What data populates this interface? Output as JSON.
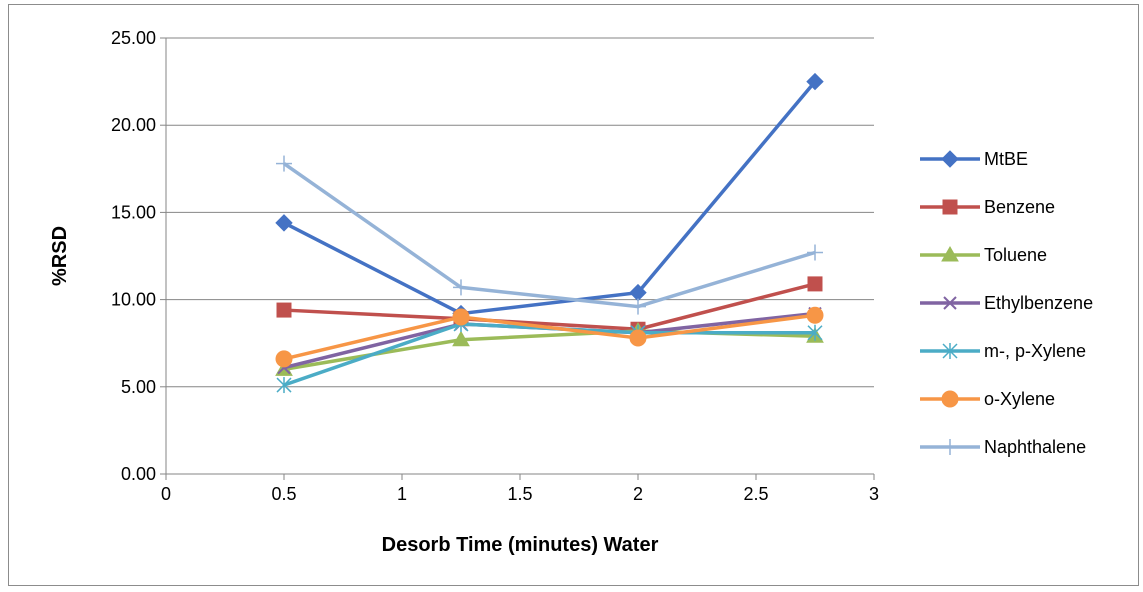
{
  "chart_data": {
    "type": "line",
    "title": "",
    "xlabel": "Desorb Time (minutes) Water",
    "ylabel": "%RSD",
    "xlim": [
      0,
      3
    ],
    "ylim": [
      0,
      25
    ],
    "x_ticks": [
      "0",
      "0.5",
      "1",
      "1.5",
      "2",
      "2.5",
      "3"
    ],
    "x_tick_values": [
      0,
      0.5,
      1,
      1.5,
      2,
      2.5,
      3
    ],
    "y_ticks": [
      "0.00",
      "5.00",
      "10.00",
      "15.00",
      "20.00",
      "25.00"
    ],
    "y_tick_values": [
      0,
      5,
      10,
      15,
      20,
      25
    ],
    "grid": "horizontal",
    "legend_position": "right",
    "x": [
      0.5,
      1.25,
      2,
      2.75
    ],
    "series": [
      {
        "name": "MtBE",
        "color": "#4472c4",
        "marker": "diamond",
        "values": [
          14.4,
          9.2,
          10.4,
          22.5
        ]
      },
      {
        "name": "Benzene",
        "color": "#c0504d",
        "marker": "square",
        "values": [
          9.4,
          8.9,
          8.3,
          10.9
        ]
      },
      {
        "name": "Toluene",
        "color": "#9bbb59",
        "marker": "triangle",
        "values": [
          6.0,
          7.7,
          8.2,
          7.9
        ]
      },
      {
        "name": "Ethylbenzene",
        "color": "#8064a2",
        "marker": "x",
        "values": [
          6.1,
          8.6,
          8.1,
          9.2
        ]
      },
      {
        "name": "m-, p-Xylene",
        "color": "#4bacc6",
        "marker": "star",
        "values": [
          5.1,
          8.6,
          8.1,
          8.1
        ]
      },
      {
        "name": "o-Xylene",
        "color": "#f79646",
        "marker": "circle",
        "values": [
          6.6,
          9.0,
          7.8,
          9.1
        ]
      },
      {
        "name": "Naphthalene",
        "color": "#95b3d7",
        "marker": "plus",
        "values": [
          17.8,
          10.7,
          9.6,
          12.7
        ]
      }
    ]
  }
}
